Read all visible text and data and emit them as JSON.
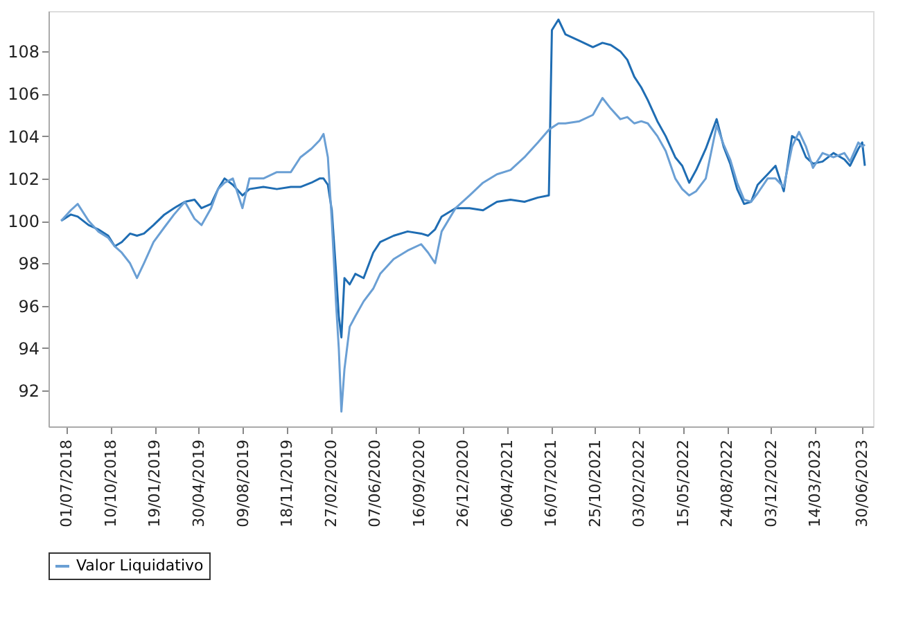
{
  "chart_data": {
    "type": "line",
    "legend": "bottom",
    "grid": false,
    "line_style": "solid",
    "xlim": [
      "2018-05-20",
      "2023-07-25"
    ],
    "ylim": [
      90.3,
      109.9
    ],
    "yticks": [
      92,
      94,
      96,
      98,
      100,
      102,
      104,
      106,
      108
    ],
    "xticks": [
      {
        "value": "2018-07-01",
        "label": "01/07/2018"
      },
      {
        "value": "2018-10-10",
        "label": "10/10/2018"
      },
      {
        "value": "2019-01-19",
        "label": "19/01/2019"
      },
      {
        "value": "2019-04-30",
        "label": "30/04/2019"
      },
      {
        "value": "2019-08-09",
        "label": "09/08/2019"
      },
      {
        "value": "2019-11-18",
        "label": "18/11/2019"
      },
      {
        "value": "2020-02-27",
        "label": "27/02/2020"
      },
      {
        "value": "2020-06-07",
        "label": "07/06/2020"
      },
      {
        "value": "2020-09-16",
        "label": "16/09/2020"
      },
      {
        "value": "2020-12-26",
        "label": "26/12/2020"
      },
      {
        "value": "2021-04-06",
        "label": "06/04/2021"
      },
      {
        "value": "2021-07-16",
        "label": "16/07/2021"
      },
      {
        "value": "2021-10-25",
        "label": "25/10/2021"
      },
      {
        "value": "2022-02-03",
        "label": "03/02/2022"
      },
      {
        "value": "2022-05-15",
        "label": "15/05/2022"
      },
      {
        "value": "2022-08-24",
        "label": "24/08/2022"
      },
      {
        "value": "2022-12-03",
        "label": "03/12/2022"
      },
      {
        "value": "2023-03-14",
        "label": "14/03/2023"
      },
      {
        "value": "2023-06-30",
        "label": "30/06/2023"
      }
    ],
    "x": [
      "2018-06-18",
      "2018-07-10",
      "2018-07-26",
      "2018-08-20",
      "2018-09-11",
      "2018-10-04",
      "2018-10-19",
      "2018-11-04",
      "2018-11-23",
      "2018-12-09",
      "2018-12-25",
      "2019-01-16",
      "2019-02-10",
      "2019-03-04",
      "2019-03-29",
      "2019-04-20",
      "2019-05-06",
      "2019-05-28",
      "2019-06-13",
      "2019-06-28",
      "2019-07-17",
      "2019-08-08",
      "2019-08-24",
      "2019-09-25",
      "2019-10-26",
      "2019-11-27",
      "2019-12-19",
      "2020-01-13",
      "2020-02-01",
      "2020-02-10",
      "2020-02-20",
      "2020-02-29",
      "2020-03-10",
      "2020-03-16",
      "2020-03-22",
      "2020-03-29",
      "2020-04-10",
      "2020-04-23",
      "2020-05-12",
      "2020-06-03",
      "2020-06-19",
      "2020-07-20",
      "2020-08-21",
      "2020-09-21",
      "2020-10-07",
      "2020-10-23",
      "2020-11-07",
      "2020-12-09",
      "2021-01-10",
      "2021-02-10",
      "2021-03-14",
      "2021-04-14",
      "2021-05-16",
      "2021-06-16",
      "2021-07-11",
      "2021-07-18",
      "2021-08-02",
      "2021-08-18",
      "2021-09-19",
      "2021-10-20",
      "2021-11-11",
      "2021-11-30",
      "2021-12-22",
      "2022-01-07",
      "2022-01-23",
      "2022-02-08",
      "2022-02-23",
      "2022-03-17",
      "2022-04-05",
      "2022-04-27",
      "2022-05-13",
      "2022-05-29",
      "2022-06-14",
      "2022-07-06",
      "2022-07-31",
      "2022-08-16",
      "2022-08-31",
      "2022-09-16",
      "2022-10-02",
      "2022-10-18",
      "2022-11-02",
      "2022-11-25",
      "2022-12-13",
      "2023-01-01",
      "2023-01-20",
      "2023-02-05",
      "2023-02-21",
      "2023-03-09",
      "2023-03-31",
      "2023-04-25",
      "2023-05-20",
      "2023-06-02",
      "2023-06-21",
      "2023-06-30",
      "2023-07-06"
    ],
    "series": [
      {
        "color": "#1f6db3",
        "values": [
          100.0,
          100.3,
          100.2,
          99.8,
          99.6,
          99.3,
          98.8,
          99.0,
          99.4,
          99.3,
          99.4,
          99.8,
          100.3,
          100.6,
          100.9,
          101.0,
          100.6,
          100.8,
          101.5,
          102.0,
          101.7,
          101.2,
          101.5,
          101.6,
          101.5,
          101.6,
          101.6,
          101.8,
          102.0,
          102.0,
          101.7,
          100.5,
          97.5,
          95.5,
          94.5,
          97.3,
          97.0,
          97.5,
          97.3,
          98.5,
          99.0,
          99.3,
          99.5,
          99.4,
          99.3,
          99.6,
          100.2,
          100.6,
          100.6,
          100.5,
          100.9,
          101.0,
          100.9,
          101.1,
          101.2,
          109.0,
          109.5,
          108.8,
          108.5,
          108.2,
          108.4,
          108.3,
          108.0,
          107.6,
          106.8,
          106.3,
          105.7,
          104.7,
          104.0,
          103.0,
          102.6,
          101.8,
          102.4,
          103.4,
          104.8,
          103.5,
          102.7,
          101.5,
          100.8,
          100.9,
          101.7,
          102.2,
          102.6,
          101.4,
          104.0,
          103.8,
          103.0,
          102.7,
          102.8,
          103.2,
          102.9,
          102.6,
          103.4,
          103.7,
          102.6
        ]
      },
      {
        "name": "Valor Liquidativo",
        "color": "#6a9fd4",
        "values": [
          100.0,
          100.5,
          100.8,
          100.0,
          99.5,
          99.2,
          98.8,
          98.5,
          98.0,
          97.3,
          98.0,
          99.0,
          99.7,
          100.3,
          100.9,
          100.1,
          99.8,
          100.6,
          101.5,
          101.8,
          102.0,
          100.6,
          102.0,
          102.0,
          102.3,
          102.3,
          103.0,
          103.4,
          103.8,
          104.1,
          103.0,
          100.0,
          96.0,
          94.0,
          91.0,
          93.0,
          95.0,
          95.5,
          96.2,
          96.8,
          97.5,
          98.2,
          98.6,
          98.9,
          98.5,
          98.0,
          99.5,
          100.6,
          101.2,
          101.8,
          102.2,
          102.4,
          103.0,
          103.7,
          104.3,
          104.4,
          104.6,
          104.6,
          104.7,
          105.0,
          105.8,
          105.3,
          104.8,
          104.9,
          104.6,
          104.7,
          104.6,
          104.0,
          103.3,
          102.0,
          101.5,
          101.2,
          101.4,
          102.0,
          104.5,
          103.6,
          102.9,
          101.8,
          101.0,
          100.9,
          101.3,
          102.0,
          102.0,
          101.6,
          103.5,
          104.2,
          103.5,
          102.5,
          103.2,
          103.0,
          103.2,
          102.8,
          103.7,
          103.5,
          103.6
        ]
      }
    ]
  }
}
